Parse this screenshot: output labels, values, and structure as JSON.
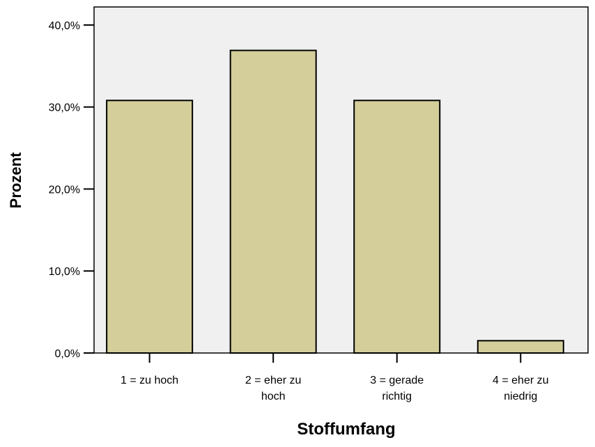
{
  "chart_data": {
    "type": "bar",
    "title": "",
    "xlabel": "Stoffumfang",
    "ylabel": "Prozent",
    "categories": [
      [
        "1 = zu hoch"
      ],
      [
        "2 = eher zu",
        "hoch"
      ],
      [
        "3 = gerade",
        "richtig"
      ],
      [
        "4 = eher zu",
        "niedrig"
      ]
    ],
    "values": [
      30.8,
      36.9,
      30.8,
      1.5
    ],
    "ylim": [
      0,
      40
    ],
    "yticks": [
      0,
      10,
      20,
      30,
      40
    ],
    "ytick_labels": [
      "0,0%",
      "10,0%",
      "20,0%",
      "30,0%",
      "40,0%"
    ],
    "grid": false,
    "colors": {
      "plot_background": "#f0f0f0",
      "bar_fill": "#d3ce9a",
      "bar_stroke": "#000000",
      "axis": "#000000",
      "text": "#000000"
    }
  }
}
